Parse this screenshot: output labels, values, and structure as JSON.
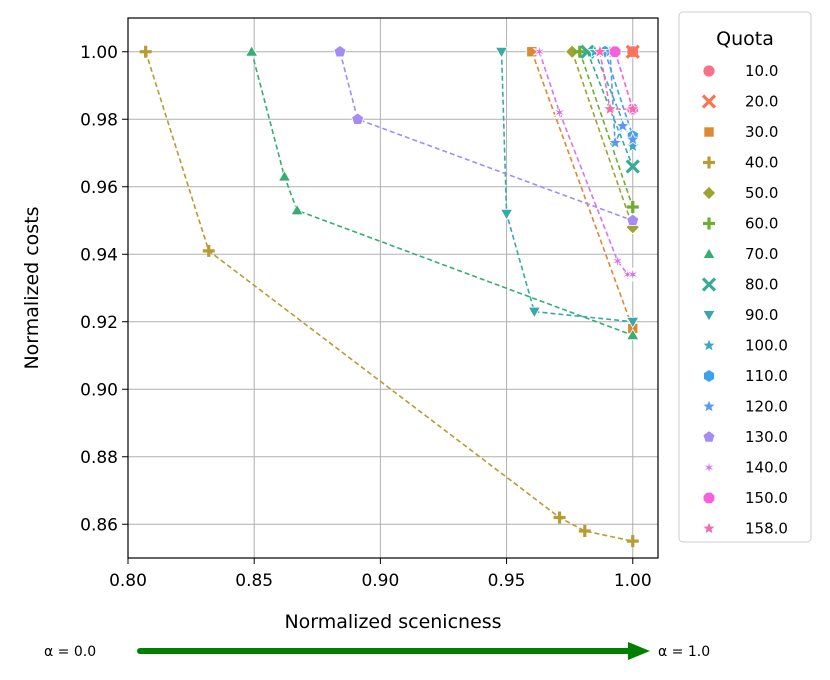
{
  "chart_data": {
    "type": "scatter",
    "xlabel": "Normalized scenicness",
    "ylabel": "Normalized costs",
    "xlim": [
      0.8,
      1.01
    ],
    "ylim": [
      0.85,
      1.01
    ],
    "xticks": [
      "0.80",
      "0.85",
      "0.90",
      "0.95",
      "1.00"
    ],
    "xtick_values": [
      0.8,
      0.85,
      0.9,
      0.95,
      1.0
    ],
    "yticks": [
      "0.86",
      "0.88",
      "0.90",
      "0.92",
      "0.94",
      "0.96",
      "0.98",
      "1.00"
    ],
    "ytick_values": [
      0.86,
      0.88,
      0.9,
      0.92,
      0.94,
      0.96,
      0.98,
      1.0
    ],
    "grid": true,
    "legend": {
      "title": "Quota",
      "placement": "outside-right",
      "entries": [
        "10.0",
        "20.0",
        "30.0",
        "40.0",
        "50.0",
        "60.0",
        "70.0",
        "80.0",
        "90.0",
        "100.0",
        "110.0",
        "120.0",
        "130.0",
        "140.0",
        "150.0",
        "158.0"
      ]
    },
    "series": [
      {
        "name": "10.0",
        "color": "#f77189",
        "marker": "circle",
        "x": [
          1.0
        ],
        "y": [
          1.0
        ]
      },
      {
        "name": "20.0",
        "color": "#f7754f",
        "marker": "x",
        "x": [
          1.0
        ],
        "y": [
          1.0
        ]
      },
      {
        "name": "30.0",
        "color": "#dc8932",
        "marker": "square",
        "x": [
          0.96,
          1.0
        ],
        "y": [
          1.0,
          0.918
        ]
      },
      {
        "name": "40.0",
        "color": "#ba9a32",
        "marker": "plus",
        "x": [
          0.807,
          0.832,
          0.971,
          0.981,
          1.0
        ],
        "y": [
          1.0,
          0.941,
          0.862,
          0.858,
          0.855
        ]
      },
      {
        "name": "50.0",
        "color": "#9da431",
        "marker": "diamond",
        "x": [
          0.976,
          1.0
        ],
        "y": [
          1.0,
          0.948
        ]
      },
      {
        "name": "60.0",
        "color": "#6ead31",
        "marker": "plus",
        "x": [
          0.979,
          1.0
        ],
        "y": [
          1.0,
          0.954
        ]
      },
      {
        "name": "70.0",
        "color": "#34ae72",
        "marker": "triangle",
        "x": [
          0.849,
          0.862,
          0.867,
          1.0
        ],
        "y": [
          1.0,
          0.963,
          0.953,
          0.916
        ]
      },
      {
        "name": "80.0",
        "color": "#36ac96",
        "marker": "x",
        "x": [
          0.982,
          1.0
        ],
        "y": [
          1.0,
          0.966
        ]
      },
      {
        "name": "90.0",
        "color": "#38a9a9",
        "marker": "tri-down",
        "x": [
          0.948,
          0.95,
          0.961,
          1.0
        ],
        "y": [
          1.0,
          0.952,
          0.923,
          0.92
        ]
      },
      {
        "name": "100.0",
        "color": "#3aa8c2",
        "marker": "star",
        "x": [
          0.985,
          1.0
        ],
        "y": [
          1.0,
          0.972
        ]
      },
      {
        "name": "110.0",
        "color": "#3ba3ec",
        "marker": "hexagon",
        "x": [
          0.989,
          1.0
        ],
        "y": [
          1.0,
          0.975
        ]
      },
      {
        "name": "120.0",
        "color": "#5c96f4",
        "marker": "star",
        "x": [
          0.991,
          0.993,
          0.996,
          1.0
        ],
        "y": [
          1.0,
          0.973,
          0.978,
          0.974
        ]
      },
      {
        "name": "130.0",
        "color": "#a48cf4",
        "marker": "pentagon",
        "x": [
          0.884,
          0.891,
          1.0
        ],
        "y": [
          1.0,
          0.98,
          0.95
        ]
      },
      {
        "name": "140.0",
        "color": "#d674f4",
        "marker": "asterisk",
        "x": [
          0.963,
          0.971,
          0.994,
          0.998,
          1.0
        ],
        "y": [
          1.0,
          0.982,
          0.938,
          0.934,
          0.934
        ]
      },
      {
        "name": "150.0",
        "color": "#f461dd",
        "marker": "octagon",
        "x": [
          0.993,
          1.0
        ],
        "y": [
          1.0,
          0.983
        ]
      },
      {
        "name": "158.0",
        "color": "#f56cae",
        "marker": "star",
        "x": [
          0.987,
          0.991,
          1.0
        ],
        "y": [
          1.0,
          0.983,
          0.983
        ]
      }
    ]
  },
  "alpha_arrow": {
    "start_label": "α = 0.0",
    "end_label": "α = 1.0",
    "color": "#008000"
  }
}
